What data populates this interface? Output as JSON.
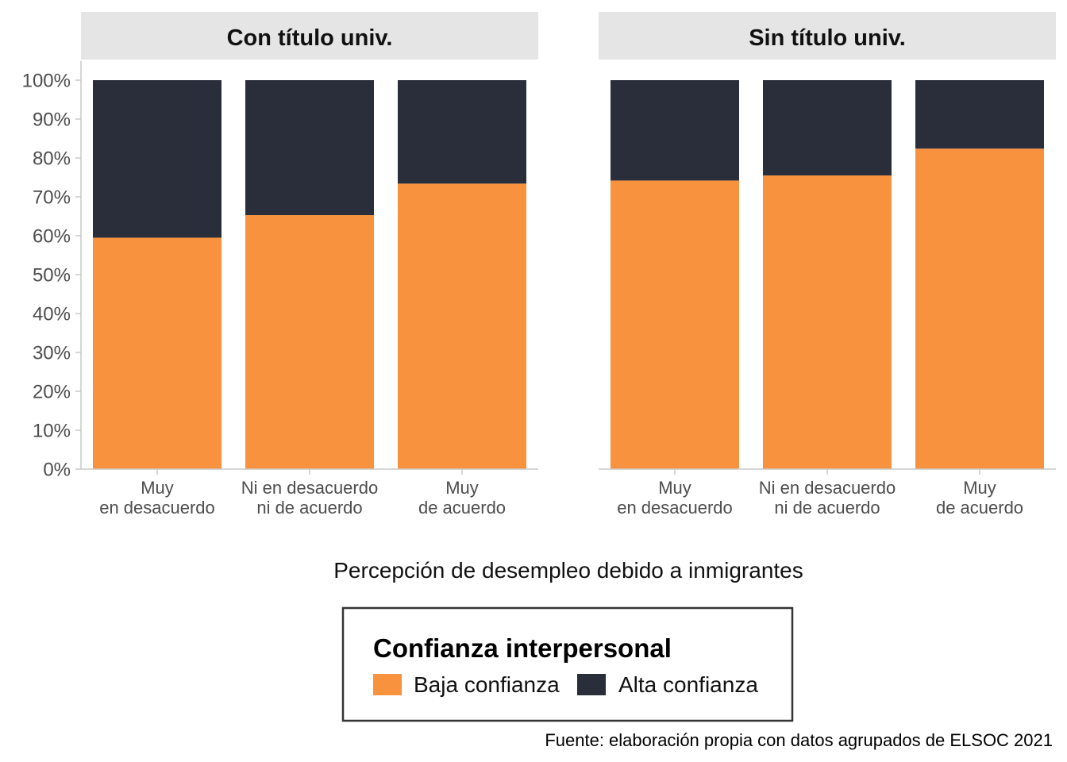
{
  "chart_data": {
    "type": "bar",
    "stacked": true,
    "percent_axis": true,
    "facets": [
      "Con título univ.",
      "Sin título univ."
    ],
    "categories": [
      [
        "Muy",
        "en desacuerdo"
      ],
      [
        "Ni en desacuerdo",
        "ni de acuerdo"
      ],
      [
        "Muy",
        "de acuerdo"
      ]
    ],
    "series": [
      {
        "name": "Baja confianza",
        "color": "#f9923e",
        "values": [
          [
            59.5,
            65.3,
            73.4
          ],
          [
            74.2,
            75.5,
            82.4
          ]
        ]
      },
      {
        "name": "Alta confianza",
        "color": "#2a2e3b",
        "values": [
          [
            40.5,
            34.7,
            26.6
          ],
          [
            25.8,
            24.5,
            17.6
          ]
        ]
      }
    ],
    "ylim": [
      0,
      100
    ],
    "yticks": [
      "0%",
      "10%",
      "20%",
      "30%",
      "40%",
      "50%",
      "60%",
      "70%",
      "80%",
      "90%",
      "100%"
    ],
    "xlabel": "Percepción de desempleo debido a inmigrantes",
    "ylabel": "",
    "grid": false,
    "legend": {
      "title": "Confianza interpersonal",
      "position": "bottom"
    },
    "caption": "Fuente: elaboración propia con datos agrupados de ELSOC 2021"
  }
}
